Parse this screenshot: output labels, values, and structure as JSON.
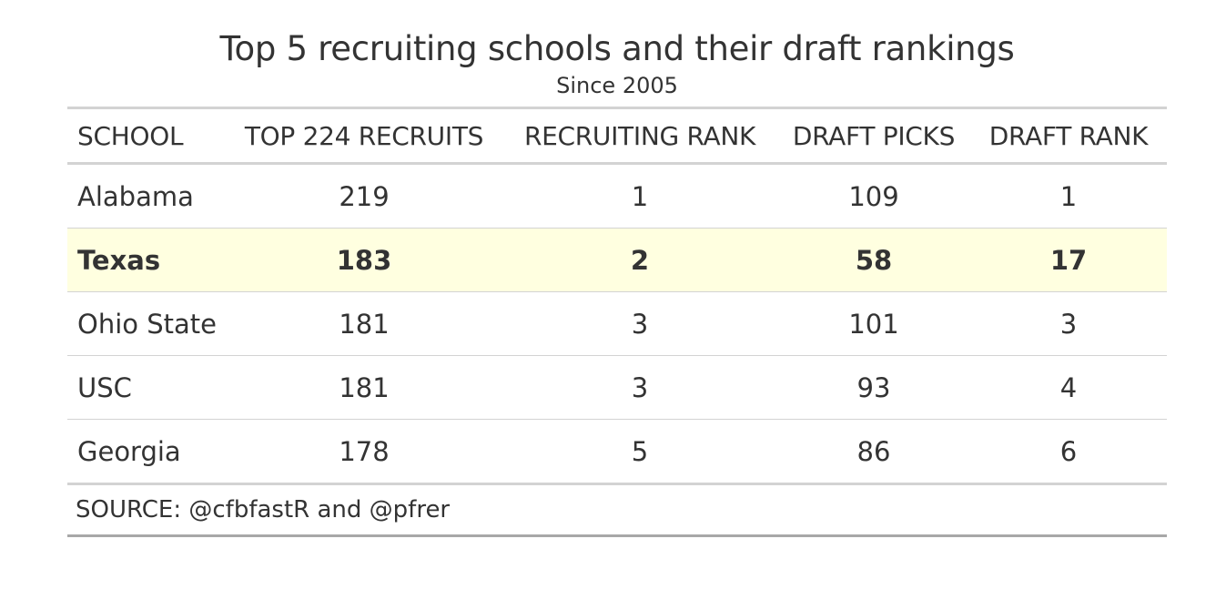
{
  "chart_data": {
    "type": "table",
    "title": "Top 5 recruiting schools and their draft rankings",
    "subtitle": "Since 2005",
    "columns": [
      "SCHOOL",
      "TOP 224 RECRUITS",
      "RECRUITING RANK",
      "DRAFT PICKS",
      "DRAFT RANK"
    ],
    "rows": [
      [
        "Alabama",
        "219",
        "1",
        "109",
        "1"
      ],
      [
        "Texas",
        "183",
        "2",
        "58",
        "17"
      ],
      [
        "Ohio State",
        "181",
        "3",
        "101",
        "3"
      ],
      [
        "USC",
        "181",
        "3",
        "93",
        "4"
      ],
      [
        "Georgia",
        "178",
        "5",
        "86",
        "6"
      ]
    ],
    "highlighted_row": "Texas",
    "highlight_color": "#ffffe0",
    "source": "SOURCE: @cfbfastR and @pfrer"
  }
}
